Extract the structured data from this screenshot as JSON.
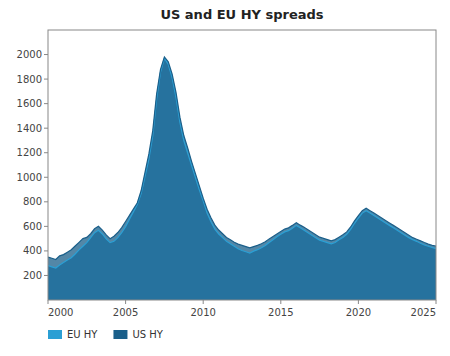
{
  "chart_data": {
    "type": "area",
    "title": "US and EU HY spreads",
    "categories": [
      "2000",
      null,
      null,
      null,
      null,
      null,
      null,
      null,
      null,
      null,
      null,
      null,
      null,
      null,
      null,
      null,
      null,
      null,
      null,
      null,
      "2005",
      null,
      null,
      null,
      null,
      null,
      null,
      null,
      null,
      null,
      null,
      null,
      null,
      null,
      null,
      null,
      null,
      null,
      null,
      null,
      "2010",
      null,
      null,
      null,
      null,
      null,
      null,
      null,
      null,
      null,
      null,
      null,
      null,
      null,
      null,
      null,
      null,
      null,
      null,
      null,
      "2015",
      null,
      null,
      null,
      null,
      null,
      null,
      null,
      null,
      null,
      null,
      null,
      null,
      null,
      null,
      null,
      null,
      null,
      null,
      null,
      "2020",
      null,
      null,
      null,
      null,
      null,
      null,
      null,
      null,
      null,
      null,
      null,
      null,
      null,
      null,
      null,
      null,
      null,
      null,
      null,
      "2025"
    ],
    "series": [
      {
        "name": "EU HY",
        "color": "#2b9fd4",
        "values": [
          280,
          270,
          260,
          285,
          305,
          325,
          345,
          375,
          408,
          438,
          468,
          508,
          548,
          568,
          538,
          498,
          468,
          478,
          508,
          548,
          598,
          658,
          718,
          778,
          868,
          1008,
          1148,
          1338,
          1638,
          1858,
          1970,
          1920,
          1810,
          1648,
          1448,
          1298,
          1198,
          1098,
          998,
          898,
          808,
          708,
          638,
          578,
          538,
          508,
          478,
          458,
          438,
          418,
          403,
          393,
          383,
          398,
          410,
          425,
          445,
          468,
          490,
          515,
          535,
          555,
          565,
          585,
          608,
          588,
          568,
          548,
          528,
          508,
          488,
          478,
          468,
          458,
          468,
          490,
          510,
          535,
          575,
          625,
          668,
          708,
          728,
          708,
          688,
          668,
          648,
          628,
          608,
          588,
          568,
          548,
          528,
          508,
          492,
          478,
          462,
          448,
          438,
          428,
          418
        ]
      },
      {
        "name": "US HY",
        "color": "#1a5f8a",
        "values": [
          350,
          340,
          330,
          360,
          370,
          390,
          410,
          440,
          470,
          500,
          510,
          540,
          580,
          600,
          570,
          530,
          500,
          520,
          550,
          590,
          640,
          690,
          740,
          790,
          890,
          1040,
          1190,
          1380,
          1680,
          1880,
          1980,
          1940,
          1840,
          1690,
          1490,
          1340,
          1240,
          1130,
          1030,
          930,
          830,
          740,
          670,
          610,
          570,
          540,
          510,
          490,
          470,
          455,
          445,
          435,
          425,
          435,
          445,
          458,
          475,
          498,
          518,
          538,
          558,
          578,
          588,
          608,
          630,
          610,
          592,
          572,
          552,
          532,
          512,
          502,
          492,
          482,
          492,
          512,
          532,
          555,
          595,
          645,
          688,
          728,
          748,
          728,
          708,
          688,
          668,
          648,
          628,
          608,
          588,
          568,
          548,
          528,
          508,
          495,
          482,
          468,
          455,
          445,
          440
        ]
      }
    ],
    "ylim": [
      0,
      2200
    ],
    "yticks": [
      200,
      400,
      600,
      800,
      1000,
      1200,
      1400,
      1600,
      1800,
      2000
    ],
    "legend": "lower left",
    "grid": false
  }
}
